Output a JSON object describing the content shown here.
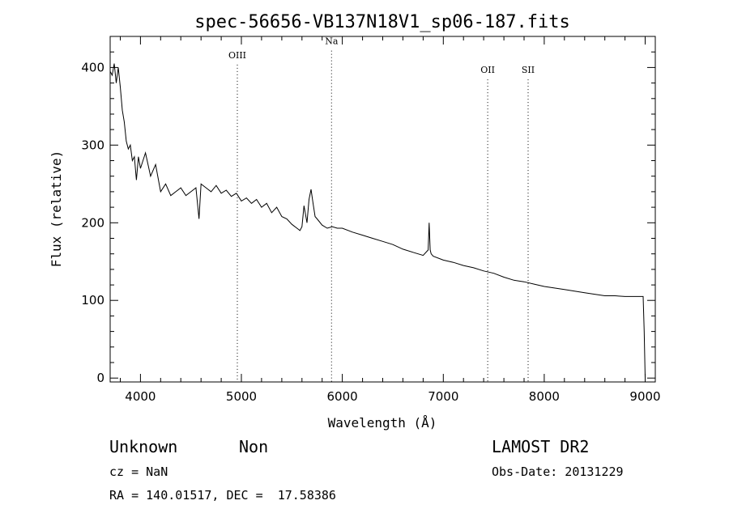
{
  "chart_data": {
    "type": "line",
    "title": "spec-56656-VB137N18V1_sp06-187.fits",
    "xlabel": "Wavelength (Å)",
    "ylabel": "Flux (relative)",
    "xlim": [
      3700,
      9100
    ],
    "ylim": [
      -5,
      440
    ],
    "x_ticks": [
      4000,
      5000,
      6000,
      7000,
      8000,
      9000
    ],
    "y_ticks": [
      0,
      100,
      200,
      300,
      400
    ],
    "grid": false,
    "line_color": "#000000",
    "series": [
      {
        "x": [
          3700,
          3720,
          3740,
          3760,
          3780,
          3800,
          3820,
          3840,
          3860,
          3880,
          3900,
          3920,
          3940,
          3960,
          3980,
          4000,
          4050,
          4100,
          4150,
          4200,
          4250,
          4300,
          4350,
          4400,
          4450,
          4500,
          4550,
          4580,
          4600,
          4650,
          4700,
          4750,
          4800,
          4850,
          4900,
          4950,
          5000,
          5050,
          5100,
          5150,
          5200,
          5250,
          5300,
          5350,
          5400,
          5450,
          5500,
          5550,
          5580,
          5600,
          5620,
          5650,
          5670,
          5690,
          5710,
          5730,
          5750,
          5800,
          5850,
          5900,
          5950,
          6000,
          6100,
          6200,
          6300,
          6400,
          6500,
          6600,
          6700,
          6800,
          6850,
          6860,
          6870,
          6880,
          6900,
          7000,
          7100,
          7200,
          7300,
          7400,
          7500,
          7600,
          7700,
          7800,
          7900,
          8000,
          8100,
          8200,
          8300,
          8400,
          8500,
          8600,
          8700,
          8800,
          8900,
          8980,
          8990,
          9000
        ],
        "y": [
          395,
          390,
          405,
          380,
          400,
          375,
          345,
          330,
          305,
          295,
          300,
          280,
          285,
          255,
          285,
          270,
          290,
          260,
          275,
          240,
          250,
          235,
          240,
          245,
          235,
          240,
          245,
          205,
          250,
          245,
          240,
          248,
          238,
          242,
          234,
          238,
          228,
          232,
          225,
          230,
          220,
          225,
          213,
          220,
          208,
          205,
          198,
          193,
          190,
          195,
          222,
          200,
          230,
          243,
          225,
          208,
          205,
          197,
          193,
          195,
          193,
          193,
          188,
          184,
          180,
          176,
          172,
          166,
          162,
          158,
          165,
          200,
          165,
          160,
          157,
          152,
          149,
          145,
          142,
          138,
          135,
          130,
          126,
          124,
          121,
          118,
          116,
          114,
          112,
          110,
          108,
          106,
          106,
          105,
          105,
          105,
          60,
          0
        ]
      }
    ],
    "annotations": [
      {
        "label": "OIII",
        "x": 4960,
        "label_y": 412
      },
      {
        "label": "Na",
        "x": 5893,
        "label_y": 430
      },
      {
        "label": "OII",
        "x": 7440,
        "label_y": 393
      },
      {
        "label": "SII",
        "x": 7840,
        "label_y": 393
      }
    ]
  },
  "footer": {
    "class_label": "Unknown",
    "subclass_label": "Non",
    "survey_label": "LAMOST DR2",
    "cz_text": "cz = NaN",
    "obs_date_text": "Obs-Date: 20131229",
    "radec_text": "RA = 140.01517, DEC =  17.58386"
  }
}
